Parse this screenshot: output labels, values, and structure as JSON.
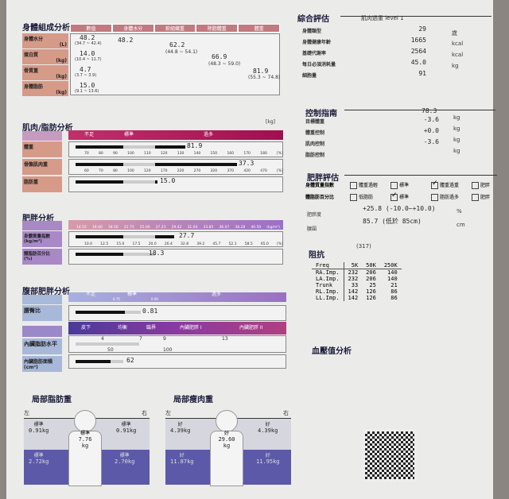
{
  "body_comp": {
    "title": "身體組成分析",
    "headers": [
      "數值",
      "身體水分",
      "軟組織重",
      "除脂體重",
      "體重"
    ],
    "rows": [
      {
        "label": "身體水分",
        "unit": "(L)",
        "value": "48.2",
        "range": "(34.7 ~ 42.4)"
      },
      {
        "label": "蛋白質",
        "unit": "(kg)",
        "value": "14.0",
        "range": "(10.4 ~ 11.7)"
      },
      {
        "label": "骨質重",
        "unit": "(kg)",
        "value": "4.7",
        "range": "(3.7 ~ 3.9)"
      },
      {
        "label": "身體脂肪",
        "unit": "(kg)",
        "value": "15.0",
        "range": "(9.1 ~ 13.6)"
      }
    ],
    "water": "48.2",
    "soft": "62.2",
    "soft_range": "(44.8 ~ 54.1)",
    "ffm": "66.9",
    "ffm_range": "(48.3 ~ 59.0)",
    "weight": "81.9",
    "weight_range": "(55.3 ~ 74.8)"
  },
  "muscle_fat": {
    "title": "肌肉/脂肪分析",
    "unit": "[kg]",
    "bands": [
      "不足",
      "標準",
      "過多"
    ],
    "rows": [
      {
        "label": "體重",
        "value": "81.9",
        "level": 0.55
      },
      {
        "label": "骨骼肌肉重",
        "value": "37.3",
        "level": 0.81
      },
      {
        "label": "脂肪重",
        "value": "15.0",
        "level": 0.41
      }
    ],
    "scale1": [
      "70",
      "80",
      "90",
      "100",
      "110",
      "120",
      "130",
      "140",
      "150",
      "160",
      "170",
      "180",
      "[%]"
    ],
    "scale2": [
      "60",
      "70",
      "80",
      "100",
      "120",
      "170",
      "220",
      "270",
      "320",
      "370",
      "420",
      "470",
      "[%]"
    ]
  },
  "obesity": {
    "title": "肥胖分析",
    "bands": [
      "不足",
      "標準",
      "過多"
    ],
    "scale1": [
      "14.55",
      "16.60",
      "18.50",
      "21.75",
      "25.00",
      "27.21",
      "29.42",
      "31.64",
      "33.85",
      "36.07",
      "38.28",
      "40.50",
      "(kg/m²)"
    ],
    "scale2": [
      "10.0",
      "12.5",
      "15.0",
      "17.5",
      "20.0",
      "26.4",
      "32.8",
      "39.2",
      "45.7",
      "52.1",
      "58.5",
      "65.0",
      "[%]"
    ],
    "rows": [
      {
        "label": "身體質量指數",
        "unit": "(kg/m²)",
        "value": "27.7"
      },
      {
        "label": "體脂肪百分比",
        "unit": "(%)",
        "value": "18.3"
      }
    ]
  },
  "abdominal": {
    "title": "腹部肥胖分析",
    "bands": [
      "不足",
      "標準",
      "過多"
    ],
    "marks": [
      "0.75",
      "0.90"
    ],
    "whr_label": "腰臀比",
    "whr": "0.81",
    "vf_bands": [
      "皮下",
      "均衡",
      "臨界",
      "內臟肥胖 I",
      "內臟肥胖 II"
    ],
    "vf_marks": [
      "4",
      "7",
      "9",
      "13"
    ],
    "vf_label": "內臟脂肪水平",
    "vf_value": "7",
    "vf_ticks": [
      "50",
      "100"
    ],
    "vfa_label": "內臟脂肪面積",
    "vfa_unit": "(cm²)",
    "vfa": "62"
  },
  "local_fat": {
    "title": "局部脂肪重",
    "left": "左",
    "right": "右",
    "la": {
      "s": "標準",
      "v": "0.91kg"
    },
    "ra": {
      "s": "標準",
      "v": "0.91kg"
    },
    "tr": {
      "s": "標準",
      "v": "7.76",
      "u": "kg"
    },
    "ll": {
      "s": "標準",
      "v": "2.72kg"
    },
    "rl": {
      "s": "標準",
      "v": "2.70kg"
    }
  },
  "local_lean": {
    "title": "局部瘦肉重",
    "left": "左",
    "right": "右",
    "la": {
      "s": "好",
      "v": "4.39kg"
    },
    "ra": {
      "s": "好",
      "v": "4.39kg"
    },
    "tr": {
      "s": "好",
      "v": "29.60",
      "u": "kg"
    },
    "ll": {
      "s": "好",
      "v": "11.87kg"
    },
    "rl": {
      "s": "好",
      "v": "11.95kg"
    }
  },
  "summary": {
    "title": "綜合評估",
    "type": "肌肉過重  level 1",
    "rows": [
      {
        "label": "身體類型",
        "value": "29",
        "unit": "歲"
      },
      {
        "label": "身體健康年齡",
        "value": "1665",
        "unit": "kcal"
      },
      {
        "label": "基礎代謝率",
        "value": "2564",
        "unit": "kcal"
      },
      {
        "label": "每日必須消耗量",
        "value": "45.0",
        "unit": "kg"
      },
      {
        "label": "細胞量",
        "value": "91",
        "unit": ""
      }
    ]
  },
  "control": {
    "title": "控制指南",
    "target": "78.3",
    "rows": [
      {
        "label": "目標體重",
        "value": "-3.6",
        "unit": "kg"
      },
      {
        "label": "體重控制",
        "value": "+0.0",
        "unit": "kg"
      },
      {
        "label": "肌肉控制",
        "value": "-3.6",
        "unit": "kg"
      },
      {
        "label": "脂肪控制",
        "value": "",
        "unit": "kg"
      }
    ]
  },
  "obesity_eval": {
    "title": "肥胖評估",
    "bmi_label": "身體質量指數",
    "bmi_opts": [
      "體重過輕",
      "標準",
      "體重過重",
      "肥胖"
    ],
    "bmi_checked": 2,
    "pbf_label": "體脂肪百分比",
    "pbf_opts": [
      "低脂肪",
      "標準",
      "脂肪過多",
      "肥胖"
    ],
    "pbf_checked": 1,
    "degree_label": "肥胖度",
    "degree": "+25.8 (-10.0~+10.0)",
    "degree_unit": "%",
    "waist_label": "腰圍",
    "waist": "85.7 (低於 85cm)",
    "waist_unit": "cm"
  },
  "impedance": {
    "title": "阻抗",
    "note": "(317)",
    "headers": [
      "Freq",
      "5K",
      "50K",
      "250K"
    ],
    "rows": [
      [
        "RA.Imp.",
        "232",
        "206",
        "140"
      ],
      [
        "LA.Imp.",
        "232",
        "206",
        "140"
      ],
      [
        "Trunk",
        "33",
        "25",
        "21"
      ],
      [
        "RL.Imp.",
        "142",
        "126",
        "86"
      ],
      [
        "LL.Imp.",
        "142",
        "126",
        "86"
      ]
    ]
  },
  "bp": {
    "title": "血壓值分析"
  }
}
